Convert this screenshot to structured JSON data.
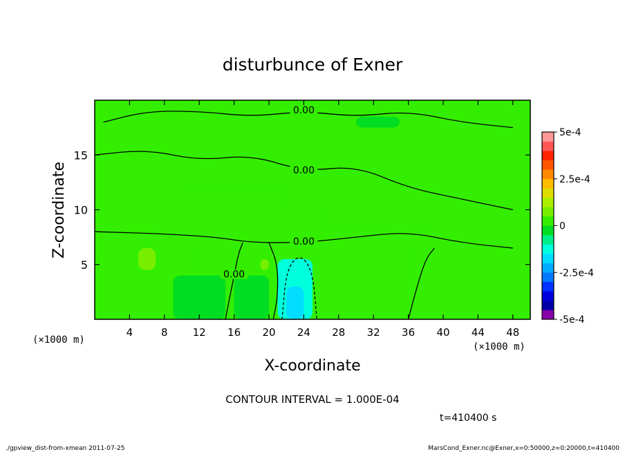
{
  "chart_data": {
    "type": "heatmap",
    "title": "disturbunce of Exner",
    "xlabel": "X-coordinate",
    "ylabel": "Z-coordinate",
    "x_unit_left": "(×1000 m)",
    "x_unit_right": "(×1000 m)",
    "xlim": [
      0,
      50
    ],
    "ylim": [
      0,
      20
    ],
    "x_ticks": [
      4,
      8,
      12,
      16,
      20,
      24,
      28,
      32,
      36,
      40,
      44,
      48
    ],
    "y_ticks": [
      5,
      10,
      15
    ],
    "colorbar": {
      "min": -0.0005,
      "max": 0.0005,
      "tick_values": [
        0.0005,
        0.00025,
        0,
        -0.00025,
        -0.0005
      ],
      "tick_labels": [
        "5e-4",
        "2.5e-4",
        "0",
        "-2.5e-4",
        "-5e-4"
      ],
      "colors": [
        "#8800aa",
        "#0000aa",
        "#0000dd",
        "#0033ff",
        "#0077ff",
        "#00aaff",
        "#00ddff",
        "#00ffdd",
        "#00ee88",
        "#00dd22",
        "#33ee00",
        "#77ee00",
        "#aaee00",
        "#dddd00",
        "#ffbb00",
        "#ff8800",
        "#ff5500",
        "#ff2200",
        "#ff5555",
        "#ff9999"
      ]
    },
    "field_regions": [
      {
        "x0": 0,
        "x1": 50,
        "z0": 0,
        "z1": 20,
        "value": 0
      },
      {
        "x0": 0,
        "x1": 12,
        "z0": 0,
        "z1": 7,
        "value": 3e-05
      },
      {
        "x0": 36,
        "x1": 50,
        "z0": 0,
        "z1": 7,
        "value": 3e-05
      },
      {
        "x0": 10,
        "x1": 22,
        "z0": 10,
        "z1": 12,
        "value": 2e-05
      },
      {
        "x0": 26,
        "x1": 40,
        "z0": 8,
        "z1": 10,
        "value": 2e-05
      },
      {
        "x0": 5,
        "x1": 7,
        "z0": 4.5,
        "z1": 6.5,
        "value": 8e-05
      },
      {
        "x0": 19,
        "x1": 20,
        "z0": 4.5,
        "z1": 5.5,
        "value": 8e-05
      },
      {
        "x0": 9,
        "x1": 15,
        "z0": 0,
        "z1": 4,
        "value": -3e-05
      },
      {
        "x0": 16,
        "x1": 20,
        "z0": 0,
        "z1": 4,
        "value": -2e-05
      },
      {
        "x0": 30,
        "x1": 35,
        "z0": 17.5,
        "z1": 18.5,
        "value": -3e-05
      },
      {
        "x0": 21,
        "x1": 25,
        "z0": 0,
        "z1": 5.5,
        "value": -0.00012
      },
      {
        "x0": 22,
        "x1": 24,
        "z0": 0,
        "z1": 3,
        "value": -0.00016
      }
    ],
    "contours": [
      {
        "level": 0,
        "label": "0.00",
        "points": [
          [
            1,
            18
          ],
          [
            6,
            19
          ],
          [
            12,
            19
          ],
          [
            18,
            18.5
          ],
          [
            24,
            19
          ],
          [
            30,
            18.5
          ],
          [
            36,
            19
          ],
          [
            42,
            18
          ],
          [
            48,
            17.5
          ]
        ]
      },
      {
        "level": 0,
        "label": "0.00",
        "points": [
          [
            0,
            15
          ],
          [
            6,
            15.5
          ],
          [
            12,
            14.5
          ],
          [
            18,
            15
          ],
          [
            24,
            13.5
          ],
          [
            30,
            14
          ],
          [
            36,
            12
          ],
          [
            42,
            11
          ],
          [
            48,
            10
          ]
        ]
      },
      {
        "level": 0,
        "label": "0.00",
        "points": [
          [
            0,
            8
          ],
          [
            8,
            7.8
          ],
          [
            14,
            7.5
          ],
          [
            18,
            7
          ],
          [
            24,
            7
          ],
          [
            30,
            7.5
          ],
          [
            36,
            8
          ],
          [
            42,
            7
          ],
          [
            48,
            6.5
          ]
        ]
      },
      {
        "level": 0,
        "label": "0.00",
        "points": [
          [
            15,
            0
          ],
          [
            15.5,
            2
          ],
          [
            16,
            4
          ],
          [
            16.5,
            6
          ],
          [
            17,
            7
          ]
        ]
      },
      {
        "level": 0,
        "label": "",
        "points": [
          [
            20,
            7
          ],
          [
            21,
            5
          ],
          [
            21,
            2
          ],
          [
            20.5,
            0
          ]
        ]
      },
      {
        "level": 0,
        "label": "",
        "points": [
          [
            36,
            0
          ],
          [
            37,
            3
          ],
          [
            38,
            5.5
          ],
          [
            39,
            6.5
          ]
        ]
      },
      {
        "level": -0.0001,
        "label": "",
        "points": [
          [
            21.5,
            0
          ],
          [
            22,
            4.5
          ],
          [
            23.5,
            6
          ],
          [
            25,
            4.5
          ],
          [
            25.5,
            0
          ]
        ]
      }
    ]
  },
  "contour_interval": "CONTOUR INTERVAL = 1.000E-04",
  "time_label": "t=410400 s",
  "footer_left": "./gpview_dist-from-xmean  2011-07-25",
  "footer_right": "MarsCond_Exner.nc@Exner,x=0:50000,z=0:20000,t=410400"
}
